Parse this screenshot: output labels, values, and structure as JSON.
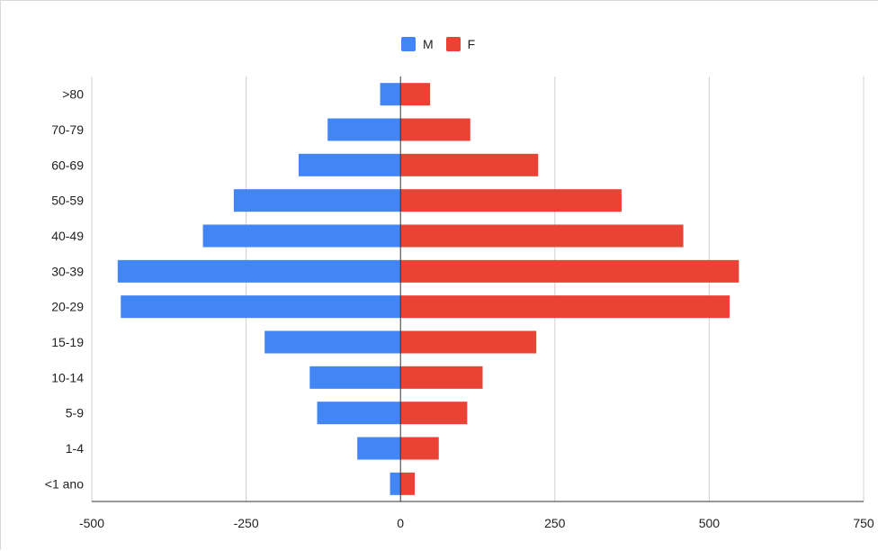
{
  "chart_data": {
    "type": "bar",
    "orientation": "horizontal",
    "categories": [
      ">80",
      "70-79",
      "60-69",
      "50-59",
      "40-49",
      "30-39",
      "20-29",
      "15-19",
      "10-14",
      "5-9",
      "1-4",
      "<1 ano"
    ],
    "series": [
      {
        "name": "M",
        "color": "#4285f4",
        "values": [
          -33,
          -118,
          -165,
          -270,
          -320,
          -458,
          -453,
          -220,
          -147,
          -135,
          -70,
          -17
        ]
      },
      {
        "name": "F",
        "color": "#ea4335",
        "values": [
          48,
          113,
          223,
          358,
          458,
          548,
          533,
          220,
          133,
          108,
          62,
          23
        ]
      }
    ],
    "x_ticks": [
      "-500",
      "-250",
      "0",
      "250",
      "500",
      "750"
    ],
    "xlim": [
      -500,
      750
    ],
    "grid": true,
    "legend_position": "top",
    "title": "",
    "xlabel": "",
    "ylabel": ""
  }
}
